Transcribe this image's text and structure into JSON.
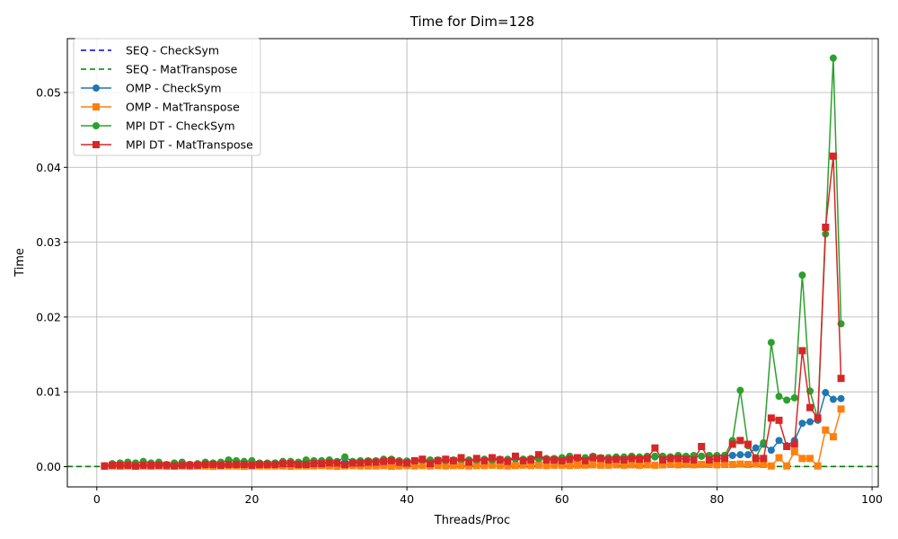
{
  "chart_data": {
    "type": "line",
    "title": "Time for Dim=128",
    "xlabel": "Threads/Proc",
    "ylabel": "Time",
    "xlim": [
      -3.8,
      100.8
    ],
    "ylim": [
      -0.0027,
      0.0572
    ],
    "xticks": [
      0,
      20,
      40,
      60,
      80,
      100
    ],
    "xtick_labels": [
      "0",
      "20",
      "40",
      "60",
      "80",
      "100"
    ],
    "yticks": [
      0.0,
      0.01,
      0.02,
      0.03,
      0.04,
      0.05
    ],
    "ytick_labels": [
      "0.00",
      "0.01",
      "0.02",
      "0.03",
      "0.04",
      "0.05"
    ],
    "grid": true,
    "legend_position": "upper-left",
    "reference_lines": [
      {
        "name": "SEQ - CheckSym",
        "value": 3e-05,
        "color": "#0000cc",
        "style": "dashed"
      },
      {
        "name": "SEQ - MatTranspose",
        "value": 2e-05,
        "color": "#008000",
        "style": "dashed"
      }
    ],
    "x": [
      1,
      2,
      3,
      4,
      5,
      6,
      7,
      8,
      9,
      10,
      11,
      12,
      13,
      14,
      15,
      16,
      17,
      18,
      19,
      20,
      21,
      22,
      23,
      24,
      25,
      26,
      27,
      28,
      29,
      30,
      31,
      32,
      33,
      34,
      35,
      36,
      37,
      38,
      39,
      40,
      41,
      42,
      43,
      44,
      45,
      46,
      47,
      48,
      49,
      50,
      51,
      52,
      53,
      54,
      55,
      56,
      57,
      58,
      59,
      60,
      61,
      62,
      63,
      64,
      65,
      66,
      67,
      68,
      69,
      70,
      71,
      72,
      73,
      74,
      75,
      76,
      77,
      78,
      79,
      80,
      81,
      82,
      83,
      84,
      85,
      86,
      87,
      88,
      89,
      90,
      91,
      92,
      93,
      94,
      95,
      96
    ],
    "series": [
      {
        "name": "OMP - CheckSym",
        "color": "#1f77b4",
        "marker": "circle",
        "values": [
          0.0001,
          0.00015,
          0.0002,
          0.0002,
          0.00025,
          0.0002,
          0.00025,
          0.0003,
          0.00025,
          0.0003,
          0.0003,
          0.0003,
          0.00035,
          0.0003,
          0.00035,
          0.0004,
          0.0004,
          0.0004,
          0.00045,
          0.0004,
          0.00045,
          0.0004,
          0.0005,
          0.00045,
          0.0005,
          0.0005,
          0.00055,
          0.0005,
          0.00055,
          0.0006,
          0.0005,
          0.0006,
          0.0006,
          0.00065,
          0.0006,
          0.0007,
          0.00065,
          0.0007,
          0.0007,
          0.00075,
          0.0007,
          0.00075,
          0.0008,
          0.00075,
          0.0008,
          0.0008,
          0.00085,
          0.0009,
          0.00085,
          0.0009,
          0.0009,
          0.00095,
          0.0009,
          0.001,
          0.00095,
          0.001,
          0.001,
          0.00105,
          0.001,
          0.0011,
          0.00105,
          0.0011,
          0.0011,
          0.00115,
          0.0011,
          0.0012,
          0.00115,
          0.0012,
          0.0012,
          0.00125,
          0.0012,
          0.0013,
          0.00125,
          0.0013,
          0.0013,
          0.00135,
          0.0013,
          0.0014,
          0.0014,
          0.0014,
          0.0015,
          0.0015,
          0.0016,
          0.0016,
          0.0025,
          0.003,
          0.0022,
          0.0035,
          0.0028,
          0.0035,
          0.0058,
          0.006,
          0.0062,
          0.0099,
          0.009,
          0.0091
        ]
      },
      {
        "name": "OMP - MatTranspose",
        "color": "#ff7f0e",
        "marker": "square",
        "values": [
          5e-05,
          0.0001,
          5e-05,
          0.0001,
          5e-05,
          0.0001,
          5e-05,
          0.0001,
          5e-05,
          0.0001,
          0.0001,
          5e-05,
          0.0001,
          0.0001,
          5e-05,
          0.0001,
          0.0001,
          0.0001,
          5e-05,
          0.0001,
          0.0001,
          0.0001,
          0.0001,
          0.0001,
          5e-05,
          0.0001,
          0.0001,
          0.0001,
          0.00015,
          0.0001,
          5e-05,
          0.0001,
          0.00015,
          0.0001,
          0.0001,
          0.0001,
          0.00015,
          5e-05,
          0.0001,
          0.00015,
          0.0001,
          0.00015,
          0.0001,
          0.00015,
          0.0001,
          0.00015,
          0.00015,
          0.0001,
          0.00015,
          0.00015,
          0.0002,
          0.00015,
          0.0001,
          0.00015,
          0.0002,
          0.00015,
          0.0002,
          0.00015,
          0.0002,
          0.0002,
          0.00015,
          0.0002,
          0.0002,
          0.00025,
          0.0002,
          0.0002,
          0.00025,
          0.0002,
          0.00025,
          0.0002,
          0.00025,
          0.0002,
          0.00025,
          0.0003,
          0.00025,
          0.0003,
          0.00025,
          0.0003,
          0.0003,
          0.00025,
          0.0003,
          0.0003,
          0.00035,
          0.0003,
          0.00035,
          0.0003,
          0.0001,
          0.0012,
          0.0001,
          0.002,
          0.0011,
          0.0011,
          0.0001,
          0.0049,
          0.004,
          0.0077
        ]
      },
      {
        "name": "MPI DT - CheckSym",
        "color": "#2ca02c",
        "marker": "circle",
        "values": [
          0.0001,
          0.0004,
          0.0005,
          0.0006,
          0.0005,
          0.0007,
          0.0005,
          0.0006,
          0.0003,
          0.0005,
          0.0006,
          0.0003,
          0.0004,
          0.0006,
          0.0005,
          0.0006,
          0.0009,
          0.0008,
          0.0007,
          0.0008,
          0.0005,
          0.0005,
          0.0005,
          0.0007,
          0.0007,
          0.0006,
          0.0009,
          0.0008,
          0.0008,
          0.0009,
          0.0007,
          0.0013,
          0.0007,
          0.0008,
          0.0008,
          0.0008,
          0.001,
          0.001,
          0.0008,
          0.0007,
          0.0008,
          0.0009,
          0.0009,
          0.0009,
          0.0008,
          0.0009,
          0.001,
          0.0009,
          0.0009,
          0.001,
          0.0009,
          0.001,
          0.001,
          0.0012,
          0.001,
          0.0011,
          0.0011,
          0.0011,
          0.0011,
          0.0012,
          0.0014,
          0.0012,
          0.0012,
          0.0014,
          0.0012,
          0.0012,
          0.0013,
          0.0013,
          0.0014,
          0.0013,
          0.0014,
          0.0014,
          0.0014,
          0.0013,
          0.0015,
          0.0014,
          0.0015,
          0.0014,
          0.0015,
          0.0015,
          0.0015,
          0.0035,
          0.0102,
          0.0028,
          0.0012,
          0.0032,
          0.0166,
          0.0094,
          0.0089,
          0.0092,
          0.0256,
          0.0101,
          0.0064,
          0.0311,
          0.0546,
          0.0191
        ]
      },
      {
        "name": "MPI DT - MatTranspose",
        "color": "#d62728",
        "marker": "square",
        "values": [
          0.0001,
          0.0002,
          0.0002,
          0.0002,
          0.0001,
          0.0002,
          0.0002,
          0.0002,
          0.0002,
          0.0001,
          0.0002,
          0.0002,
          0.0002,
          0.0003,
          0.0003,
          0.0002,
          0.0003,
          0.0003,
          0.0003,
          0.0002,
          0.0003,
          0.0003,
          0.0003,
          0.0004,
          0.0004,
          0.0003,
          0.0003,
          0.0004,
          0.0004,
          0.0005,
          0.0005,
          0.0003,
          0.0005,
          0.0005,
          0.0006,
          0.0006,
          0.0007,
          0.0008,
          0.0006,
          0.0005,
          0.0008,
          0.001,
          0.0004,
          0.0008,
          0.001,
          0.0008,
          0.0012,
          0.0006,
          0.0011,
          0.0008,
          0.0012,
          0.0009,
          0.0007,
          0.0014,
          0.0008,
          0.0009,
          0.0016,
          0.0009,
          0.0009,
          0.0008,
          0.001,
          0.0012,
          0.0008,
          0.0012,
          0.0011,
          0.0009,
          0.001,
          0.0009,
          0.0011,
          0.001,
          0.0011,
          0.0025,
          0.0009,
          0.0011,
          0.0011,
          0.001,
          0.0009,
          0.0027,
          0.0009,
          0.0011,
          0.0011,
          0.003,
          0.0035,
          0.003,
          0.0011,
          0.0011,
          0.0065,
          0.0062,
          0.0027,
          0.003,
          0.0155,
          0.0079,
          0.0065,
          0.032,
          0.0415,
          0.0118
        ]
      }
    ]
  }
}
